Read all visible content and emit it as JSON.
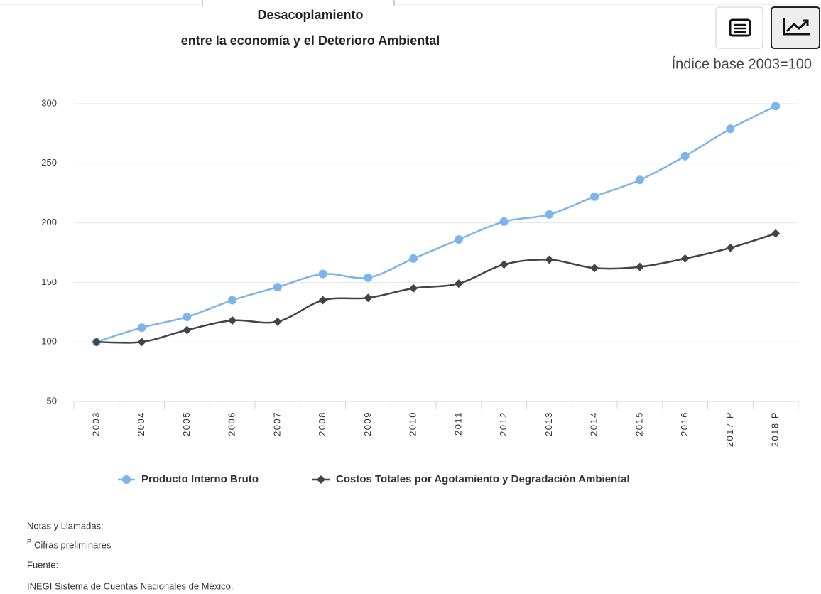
{
  "chart_data": {
    "type": "line",
    "title": [
      "Desacoplamiento",
      "entre la economía y el Deterioro Ambiental"
    ],
    "subtitle": "Índice base 2003=100",
    "categories": [
      "2003",
      "2004",
      "2005",
      "2006",
      "2007",
      "2008",
      "2009",
      "2010",
      "2011",
      "2012",
      "2013",
      "2014",
      "2015",
      "2016",
      "2017 P",
      "2018 P"
    ],
    "series": [
      {
        "name": "Producto Interno Bruto",
        "color": "#7cb5ec",
        "marker": "circle",
        "values": [
          100,
          112,
          121,
          135,
          146,
          157,
          154,
          170,
          186,
          201,
          207,
          222,
          236,
          256,
          279,
          298
        ]
      },
      {
        "name": "Costos Totales por Agotamiento y Degradación Ambiental",
        "color": "#434348",
        "marker": "diamond",
        "values": [
          100,
          100,
          110,
          118,
          117,
          135,
          137,
          145,
          149,
          165,
          169,
          162,
          163,
          170,
          179,
          191
        ]
      }
    ],
    "ylim": [
      50,
      300
    ],
    "yticks": [
      50,
      100,
      150,
      200,
      250,
      300
    ],
    "grid": true,
    "legend": "bottom"
  },
  "notes": {
    "heading": "Notas y Llamadas:",
    "mark": "P",
    "mark_text": "Cifras preliminares",
    "source_heading": "Fuente:",
    "source": "INEGI Sistema de Cuentas Nacionales de México."
  }
}
